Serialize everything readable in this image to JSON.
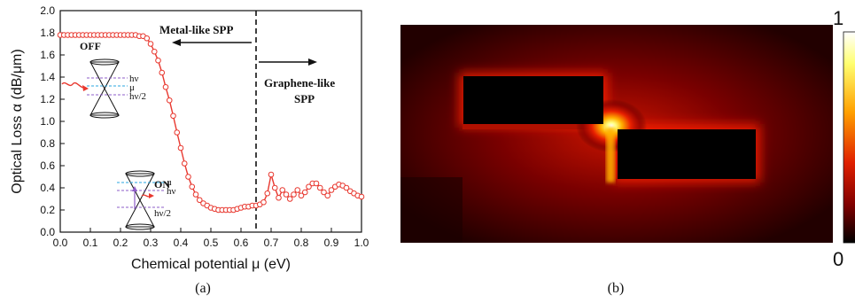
{
  "colors": {
    "curve": "#e8382f",
    "axis": "#111111",
    "divider": "#111111",
    "cone_blue": "#2aa7e0",
    "cone_purple": "#8e5cc8",
    "field_bg": "#2a0000",
    "field_core": "#000000"
  },
  "chart_data": [
    {
      "type": "line",
      "panel_label": "(a)",
      "xlabel": "Chemical potential μ (eV)",
      "ylabel": "Optical Loss α (dB/μm)",
      "xlim": [
        0.0,
        1.0
      ],
      "ylim": [
        0.0,
        2.0
      ],
      "xticks": [
        "0.0",
        "0.1",
        "0.2",
        "0.3",
        "0.4",
        "0.5",
        "0.6",
        "0.7",
        "0.8",
        "0.9",
        "1.0"
      ],
      "yticks": [
        "0.0",
        "0.2",
        "0.4",
        "0.6",
        "0.8",
        "1.0",
        "1.2",
        "1.4",
        "1.6",
        "1.8",
        "2.0"
      ],
      "xtick_values": [
        0.0,
        0.1,
        0.2,
        0.3,
        0.4,
        0.5,
        0.6,
        0.7,
        0.8,
        0.9,
        1.0
      ],
      "ytick_values": [
        0.0,
        0.2,
        0.4,
        0.6,
        0.8,
        1.0,
        1.2,
        1.4,
        1.6,
        1.8,
        2.0
      ],
      "grid": false,
      "divider_x": 0.65,
      "annotations": {
        "metal_like": "Metal-like SPP",
        "graphene_like_1": "Graphene-like",
        "graphene_like_2": "SPP",
        "off_label": "OFF",
        "on_label": "ON",
        "hv": "hν",
        "mu": "μ",
        "hv2": "hν/2"
      },
      "series": [
        {
          "marker": "open-circle",
          "x": [
            0.0,
            0.0125,
            0.025,
            0.0375,
            0.05,
            0.0625,
            0.075,
            0.0875,
            0.1,
            0.1125,
            0.125,
            0.1375,
            0.15,
            0.1625,
            0.175,
            0.1875,
            0.2,
            0.2125,
            0.225,
            0.2375,
            0.25,
            0.2625,
            0.275,
            0.2875,
            0.3,
            0.3125,
            0.325,
            0.3375,
            0.35,
            0.3625,
            0.375,
            0.3875,
            0.4,
            0.4125,
            0.425,
            0.4375,
            0.45,
            0.4625,
            0.475,
            0.4875,
            0.5,
            0.5125,
            0.525,
            0.5375,
            0.55,
            0.5625,
            0.575,
            0.5875,
            0.6,
            0.6125,
            0.625,
            0.6375,
            0.65,
            0.6625,
            0.675,
            0.6875,
            0.7,
            0.7125,
            0.725,
            0.7375,
            0.75,
            0.7625,
            0.775,
            0.7875,
            0.8,
            0.8125,
            0.825,
            0.8375,
            0.85,
            0.8625,
            0.875,
            0.8875,
            0.9,
            0.9125,
            0.925,
            0.9375,
            0.95,
            0.9625,
            0.975,
            0.9875,
            1.0
          ],
          "y": [
            1.78,
            1.78,
            1.78,
            1.78,
            1.78,
            1.78,
            1.78,
            1.78,
            1.78,
            1.78,
            1.78,
            1.78,
            1.78,
            1.78,
            1.78,
            1.78,
            1.78,
            1.78,
            1.78,
            1.78,
            1.78,
            1.77,
            1.77,
            1.75,
            1.7,
            1.63,
            1.55,
            1.44,
            1.31,
            1.19,
            1.05,
            0.9,
            0.76,
            0.62,
            0.5,
            0.41,
            0.34,
            0.29,
            0.26,
            0.24,
            0.22,
            0.21,
            0.2,
            0.2,
            0.2,
            0.2,
            0.2,
            0.21,
            0.22,
            0.23,
            0.23,
            0.24,
            0.24,
            0.25,
            0.27,
            0.35,
            0.52,
            0.4,
            0.31,
            0.38,
            0.34,
            0.3,
            0.34,
            0.38,
            0.33,
            0.36,
            0.41,
            0.44,
            0.44,
            0.4,
            0.36,
            0.33,
            0.38,
            0.41,
            0.43,
            0.42,
            0.4,
            0.37,
            0.35,
            0.33,
            0.32
          ]
        }
      ]
    },
    {
      "type": "heatmap",
      "panel_label": "(b)",
      "colorbar_ticks": [
        "1",
        "0"
      ],
      "clim": [
        0,
        1
      ]
    }
  ]
}
